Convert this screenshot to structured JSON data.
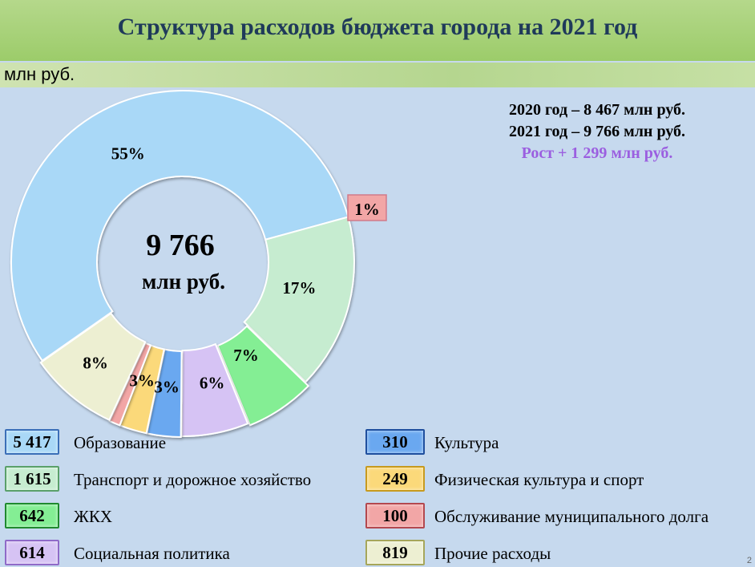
{
  "title": "Структура расходов бюджета города на 2021 год",
  "unit": "млн руб.",
  "summary": {
    "line2020": "2020 год – 8 467 млн руб.",
    "line2021": "2021 год – 9 766 млн руб.",
    "growth": "Рост  + 1 299 млн руб."
  },
  "center": {
    "value": "9 766",
    "unit": "млн руб."
  },
  "page_number": "2",
  "chart_data": {
    "type": "pie",
    "donut": true,
    "total": 9766,
    "slices": [
      {
        "label": "Образование",
        "value": 5417,
        "value_text": "5 417",
        "percent": "55%",
        "color": "#a9d8f7"
      },
      {
        "label": "Транспорт и дорожное хозяйство",
        "value": 1615,
        "value_text": "1 615",
        "percent": "17%",
        "color": "#c6ecd0"
      },
      {
        "label": "ЖКХ",
        "value": 642,
        "value_text": "642",
        "percent": "7%",
        "color": "#84ee94"
      },
      {
        "label": "Социальная политика",
        "value": 614,
        "value_text": "614",
        "percent": "6%",
        "color": "#d6c3f4"
      },
      {
        "label": "Культура",
        "value": 310,
        "value_text": "310",
        "percent": "3%",
        "color": "#6aa8f0"
      },
      {
        "label": "Физическая культура и спорт",
        "value": 249,
        "value_text": "249",
        "percent": "3%",
        "color": "#fbd97a"
      },
      {
        "label": "Обслуживание муниципального долга",
        "value": 100,
        "value_text": "100",
        "percent": "1%",
        "color": "#f2a6a6"
      },
      {
        "label": "Прочие расходы",
        "value": 819,
        "value_text": "819",
        "percent": "8%",
        "color": "#edefd2"
      }
    ]
  }
}
